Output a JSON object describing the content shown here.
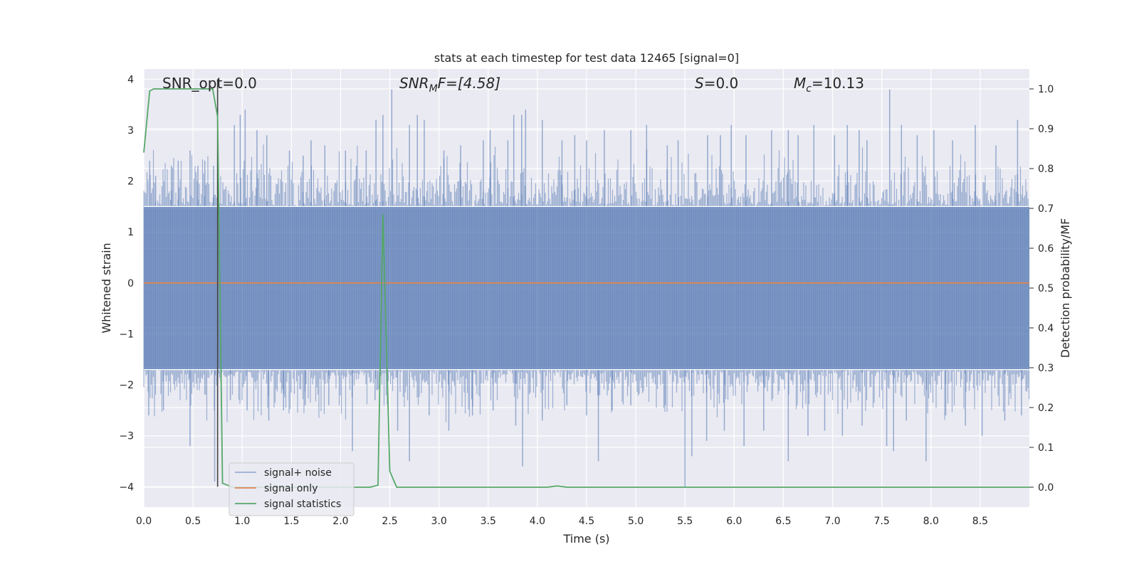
{
  "chart_data": {
    "type": "line",
    "title": "stats at each timestep for test data 12465 [signal=0]",
    "xlabel": "Time (s)",
    "ylabel": "Whitened strain",
    "y2label": "Detection probability/MF",
    "xlim": [
      0.0,
      9.0
    ],
    "ylim": [
      -4.4,
      4.2
    ],
    "y2lim": [
      -0.05,
      1.05
    ],
    "xticks": [
      "0.0",
      "0.5",
      "1.0",
      "1.5",
      "2.0",
      "2.5",
      "3.0",
      "3.5",
      "4.0",
      "4.5",
      "5.0",
      "5.5",
      "6.0",
      "6.5",
      "7.0",
      "7.5",
      "8.0",
      "8.5"
    ],
    "xtick_values": [
      0.0,
      0.5,
      1.0,
      1.5,
      2.0,
      2.5,
      3.0,
      3.5,
      4.0,
      4.5,
      5.0,
      5.5,
      6.0,
      6.5,
      7.0,
      7.5,
      8.0,
      8.5
    ],
    "yticks": [
      "−4",
      "−3",
      "−2",
      "−1",
      "0",
      "1",
      "2",
      "3",
      "4"
    ],
    "ytick_values": [
      -4,
      -3,
      -2,
      -1,
      0,
      1,
      2,
      3,
      4
    ],
    "y2ticks": [
      "0.0",
      "0.1",
      "0.2",
      "0.3",
      "0.4",
      "0.5",
      "0.6",
      "0.7",
      "0.8",
      "0.9",
      "1.0"
    ],
    "y2tick_values": [
      0.0,
      0.1,
      0.2,
      0.3,
      0.4,
      0.5,
      0.6,
      0.7,
      0.8,
      0.9,
      1.0
    ],
    "grid": true,
    "legend_placement": "lower-left",
    "annotations": {
      "snr_opt": "SNR_opt=0.0",
      "snr_mf_prefix": "SNR",
      "snr_mf_sub": "M",
      "snr_mf_suffix": "F=[4.58]",
      "s_prefix": "S",
      "s_suffix": "=0.0",
      "mc_prefix": "M",
      "mc_sub": "c",
      "mc_suffix": "=10.13"
    },
    "series": [
      {
        "name": "signal+ noise",
        "color": "#4c72b0",
        "style": "noise",
        "envelope": {
          "typical_range": [
            -1.7,
            1.5
          ],
          "max": 3.85,
          "min": -4.0
        },
        "spikes": [
          [
            0.06,
            2.4
          ],
          [
            0.12,
            2.1
          ],
          [
            0.28,
            2.3
          ],
          [
            0.35,
            2.4
          ],
          [
            0.47,
            2.6
          ],
          [
            0.55,
            2.3
          ],
          [
            0.62,
            2.4
          ],
          [
            0.71,
            2.3
          ],
          [
            0.92,
            3.1
          ],
          [
            0.98,
            3.3
          ],
          [
            1.03,
            3.4
          ],
          [
            1.15,
            3.0
          ],
          [
            1.25,
            2.9
          ],
          [
            1.48,
            2.6
          ],
          [
            1.62,
            2.5
          ],
          [
            1.7,
            2.8
          ],
          [
            1.84,
            2.7
          ],
          [
            2.05,
            2.6
          ],
          [
            2.16,
            2.3
          ],
          [
            2.26,
            2.6
          ],
          [
            2.36,
            3.2
          ],
          [
            2.43,
            3.3
          ],
          [
            2.52,
            3.8
          ],
          [
            2.7,
            3.1
          ],
          [
            2.78,
            3.3
          ],
          [
            2.85,
            3.2
          ],
          [
            3.05,
            2.6
          ],
          [
            3.22,
            2.7
          ],
          [
            3.45,
            2.8
          ],
          [
            3.52,
            3.0
          ],
          [
            3.7,
            2.8
          ],
          [
            3.76,
            3.3
          ],
          [
            3.84,
            3.3
          ],
          [
            3.88,
            3.4
          ],
          [
            4.05,
            3.2
          ],
          [
            4.25,
            2.8
          ],
          [
            4.38,
            2.9
          ],
          [
            4.5,
            2.8
          ],
          [
            4.68,
            3.0
          ],
          [
            4.95,
            3.0
          ],
          [
            5.11,
            3.1
          ],
          [
            5.32,
            2.7
          ],
          [
            5.43,
            2.8
          ],
          [
            5.73,
            2.9
          ],
          [
            5.86,
            2.9
          ],
          [
            5.97,
            3.1
          ],
          [
            6.12,
            2.9
          ],
          [
            6.38,
            3.0
          ],
          [
            6.55,
            3.0
          ],
          [
            6.65,
            2.9
          ],
          [
            6.81,
            3.1
          ],
          [
            7.02,
            2.9
          ],
          [
            7.15,
            3.1
          ],
          [
            7.27,
            3.0
          ],
          [
            7.35,
            2.8
          ],
          [
            7.58,
            3.8
          ],
          [
            7.7,
            3.1
          ],
          [
            7.86,
            2.9
          ],
          [
            8.03,
            3.0
          ],
          [
            8.22,
            2.8
          ],
          [
            8.45,
            3.1
          ],
          [
            8.66,
            2.7
          ],
          [
            8.88,
            3.2
          ],
          [
            0.05,
            -2.6
          ],
          [
            0.2,
            -2.5
          ],
          [
            0.47,
            -3.2
          ],
          [
            0.72,
            -3.9
          ],
          [
            0.88,
            -2.3
          ],
          [
            1.05,
            -2.5
          ],
          [
            1.27,
            -2.7
          ],
          [
            1.42,
            -2.5
          ],
          [
            1.64,
            -2.4
          ],
          [
            1.88,
            -2.4
          ],
          [
            2.12,
            -3.3
          ],
          [
            2.35,
            -2.3
          ],
          [
            2.58,
            -2.9
          ],
          [
            2.7,
            -3.5
          ],
          [
            2.9,
            -2.6
          ],
          [
            3.1,
            -2.9
          ],
          [
            3.34,
            -2.6
          ],
          [
            3.55,
            -2.5
          ],
          [
            3.78,
            -2.8
          ],
          [
            3.85,
            -3.6
          ],
          [
            4.05,
            -2.7
          ],
          [
            4.3,
            -2.4
          ],
          [
            4.5,
            -2.6
          ],
          [
            4.62,
            -3.5
          ],
          [
            4.76,
            -2.5
          ],
          [
            4.95,
            -2.4
          ],
          [
            5.3,
            -2.4
          ],
          [
            5.5,
            -4.0
          ],
          [
            5.57,
            -3.4
          ],
          [
            5.72,
            -3.1
          ],
          [
            5.9,
            -2.9
          ],
          [
            6.1,
            -3.2
          ],
          [
            6.3,
            -2.9
          ],
          [
            6.55,
            -3.5
          ],
          [
            6.75,
            -3.0
          ],
          [
            6.92,
            -2.9
          ],
          [
            7.1,
            -3.0
          ],
          [
            7.3,
            -2.8
          ],
          [
            7.55,
            -3.2
          ],
          [
            7.62,
            -3.3
          ],
          [
            7.75,
            -2.7
          ],
          [
            7.95,
            -3.5
          ],
          [
            8.15,
            -2.6
          ],
          [
            8.35,
            -2.8
          ],
          [
            8.52,
            -3.0
          ],
          [
            8.75,
            -2.7
          ],
          [
            8.92,
            -2.6
          ]
        ]
      },
      {
        "name": "signal only",
        "color": "#dd8452",
        "x": [
          0.0,
          9.0
        ],
        "y": [
          0.0,
          0.0
        ]
      },
      {
        "name": "signal statistics",
        "color": "#55a868",
        "axis": "right",
        "x": [
          0.0,
          0.06,
          0.1,
          0.2,
          0.3,
          0.5,
          0.6,
          0.7,
          0.75,
          0.8,
          0.9,
          1.0,
          2.0,
          2.3,
          2.38,
          2.43,
          2.5,
          2.57,
          4.1,
          4.2,
          4.3,
          9.0
        ],
        "y": [
          0.84,
          0.995,
          1.0,
          1.0,
          1.0,
          1.0,
          1.0,
          1.0,
          0.93,
          0.01,
          0.0,
          0.0,
          0.0,
          0.0,
          0.005,
          0.685,
          0.04,
          0.0,
          0.0,
          0.003,
          0.0,
          0.0
        ]
      }
    ],
    "vline": {
      "x": 0.75,
      "color": "#444444"
    }
  }
}
